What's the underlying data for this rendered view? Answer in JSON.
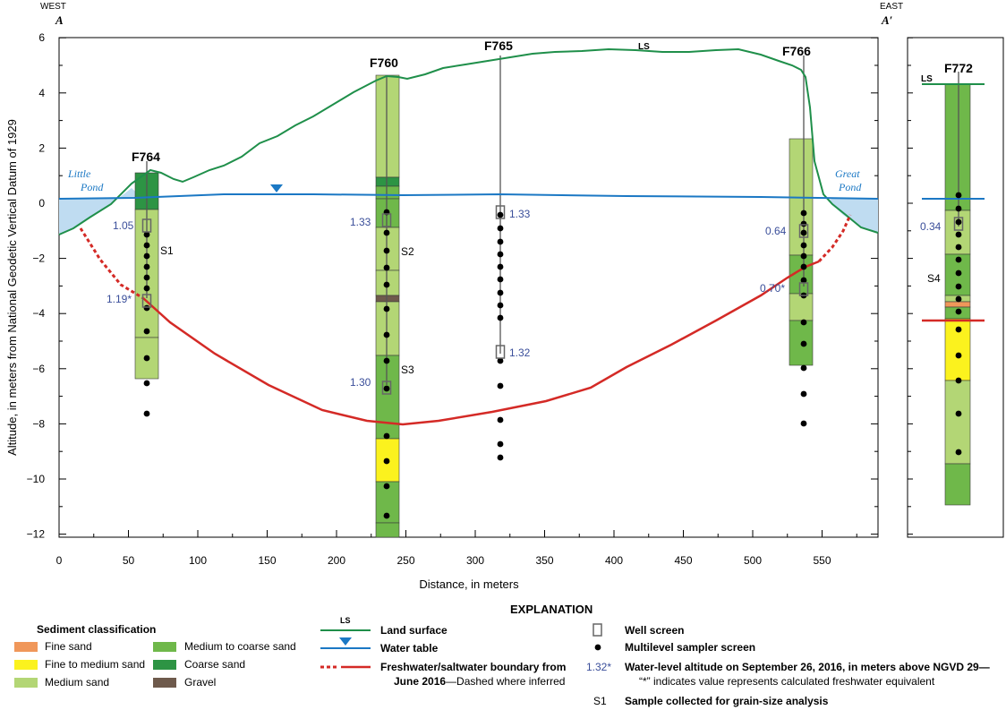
{
  "directions": {
    "west": "WEST",
    "east": "EAST",
    "a": "A",
    "a_prime": "A′"
  },
  "axes": {
    "ylabel": "Altitude, in meters from National Geodetic Vertical Datum of 1929",
    "xlabel": "Distance, in meters",
    "yticks": [
      "6",
      "4",
      "2",
      "0",
      "−2",
      "−4",
      "−6",
      "−8",
      "−10",
      "−12"
    ],
    "xticks": [
      "0",
      "50",
      "100",
      "150",
      "200",
      "250",
      "300",
      "350",
      "400",
      "450",
      "500",
      "550"
    ]
  },
  "colors": {
    "fine_sand": "#f0975a",
    "fine_to_medium_sand": "#fbf21e",
    "medium_sand": "#b3d675",
    "medium_to_coarse_sand": "#6fb84a",
    "coarse_sand": "#2d9444",
    "gravel": "#6e5a4c",
    "land_surface": "#1f8f4a",
    "water_table": "#1b78c4",
    "boundary": "#d42a26",
    "water_value": "#3a4e9a",
    "pond_fill": "#bfdcf1"
  },
  "wells": {
    "f764": "F764",
    "f760": "F760",
    "f765": "F765",
    "f766": "F766",
    "f772": "F772"
  },
  "ls_label": "LS",
  "ponds": {
    "little_1": "Little",
    "little_2": "Pond",
    "great_1": "Great",
    "great_2": "Pond"
  },
  "water_levels": {
    "f764_upper": "1.05",
    "f764_lower": "1.19*",
    "f760_upper": "1.33",
    "f760_lower": "1.30",
    "f765_upper": "1.33",
    "f765_lower": "1.32",
    "f766_upper": "0.64",
    "f766_lower": "0.70*",
    "f772": "0.34"
  },
  "samples": {
    "s1": "S1",
    "s2": "S2",
    "s3": "S3",
    "s4": "S4"
  },
  "explanation": {
    "title": "EXPLANATION",
    "sediment_title": "Sediment classification",
    "fine_sand": "Fine sand",
    "fine_to_medium_sand": "Fine to medium sand",
    "medium_sand": "Medium sand",
    "medium_to_coarse_sand": "Medium to coarse sand",
    "coarse_sand": "Coarse sand",
    "gravel": "Gravel",
    "ls_symbol": "LS",
    "land_surface": "Land surface",
    "water_table": "Water table",
    "boundary_1": "Freshwater/saltwater boundary from",
    "boundary_2a": "June 2016",
    "boundary_2b": "—Dashed where inferred",
    "well_screen": "Well screen",
    "multilevel": "Multilevel sampler screen",
    "wl_example": "1.32*",
    "wl_1": "Water-level altitude on September 26, 2016, in meters above NGVD 29—",
    "wl_2": "“*” indicates value represents calculated freshwater equivalent",
    "s_example": "S1",
    "sample_desc": "Sample collected for grain-size analysis"
  }
}
